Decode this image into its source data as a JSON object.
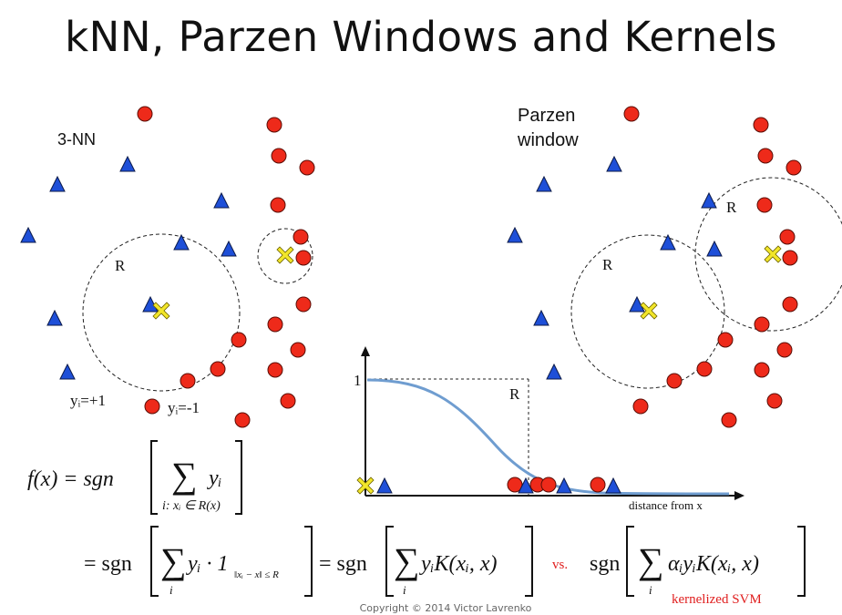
{
  "title": "kNN, Parzen Windows and Kernels",
  "left_panel": {
    "label": "3-NN",
    "radius_label": "R",
    "pos_legend": "yᵢ=+1",
    "neg_legend": "yᵢ=-1"
  },
  "right_panel": {
    "label_line1": "Parzen",
    "label_line2": "window",
    "radius_label_a": "R",
    "radius_label_b": "R"
  },
  "kernel_plot": {
    "y_tick": "1",
    "r_label": "R",
    "x_axis_label": "distance from x"
  },
  "formula": {
    "fx": "f(x) = sgn",
    "sum_sub": "i: xᵢ ∈ R(x)",
    "y_i": "yᵢ",
    "eq_sgn": "= sgn",
    "indicator_term": "yᵢ · 1",
    "indicator_sub": "‖xᵢ − x‖ ≤ R",
    "kernel_term": "yᵢK(xᵢ, x)",
    "idx": "i",
    "vs": "vs.",
    "sgn": "sgn",
    "svm_term": "αᵢyᵢK(xᵢ, x)",
    "svm_label": "kernelized SVM"
  },
  "copyright": "Copyright © 2014 Victor Lavrenko",
  "colors": {
    "positive": "#1e4fd8",
    "negative": "#ee2a1a",
    "query": "#f2e62a",
    "curve": "#6f9dd0",
    "vs_red": "#e02020"
  }
}
